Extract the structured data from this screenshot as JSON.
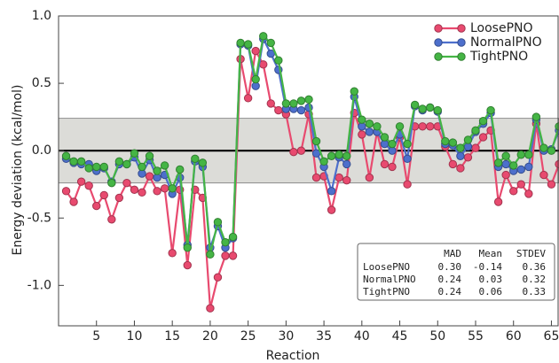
{
  "chart_data": {
    "type": "line",
    "xlabel": "Reaction",
    "ylabel": "Energy deviation (kcal/mol)",
    "x": [
      1,
      2,
      3,
      4,
      5,
      6,
      7,
      8,
      9,
      10,
      11,
      12,
      13,
      14,
      15,
      16,
      17,
      18,
      19,
      20,
      21,
      22,
      23,
      24,
      25,
      26,
      27,
      28,
      29,
      30,
      31,
      32,
      33,
      34,
      35,
      36,
      37,
      38,
      39,
      40,
      41,
      42,
      43,
      44,
      45,
      46,
      47,
      48,
      49,
      50,
      51,
      52,
      53,
      54,
      55,
      56,
      57,
      58,
      59,
      60,
      61,
      62,
      63,
      64,
      65,
      66
    ],
    "series": [
      {
        "name": "LoosePNO",
        "color": "#e84a6f",
        "values": [
          -0.3,
          -0.38,
          -0.23,
          -0.26,
          -0.41,
          -0.33,
          -0.51,
          -0.35,
          -0.24,
          -0.29,
          -0.31,
          -0.19,
          -0.3,
          -0.28,
          -0.76,
          -0.29,
          -0.85,
          -0.29,
          -0.35,
          -1.17,
          -0.94,
          -0.78,
          -0.78,
          0.68,
          0.39,
          0.74,
          0.64,
          0.35,
          0.3,
          0.27,
          -0.01,
          0.0,
          0.27,
          -0.2,
          -0.19,
          -0.44,
          -0.2,
          -0.22,
          0.28,
          0.12,
          -0.2,
          0.14,
          -0.1,
          -0.12,
          0.1,
          -0.25,
          0.18,
          0.18,
          0.18,
          0.18,
          0.03,
          -0.1,
          -0.13,
          -0.05,
          0.02,
          0.1,
          0.15,
          -0.38,
          -0.18,
          -0.3,
          -0.25,
          -0.32,
          0.2,
          -0.18,
          -0.25,
          -0.1
        ]
      },
      {
        "name": "NormalPNO",
        "color": "#4d6fcc",
        "values": [
          -0.06,
          -0.09,
          -0.1,
          -0.1,
          -0.15,
          -0.13,
          -0.23,
          -0.1,
          -0.1,
          -0.05,
          -0.17,
          -0.07,
          -0.2,
          -0.18,
          -0.32,
          -0.2,
          -0.7,
          -0.08,
          -0.12,
          -0.72,
          -0.56,
          -0.72,
          -0.65,
          0.79,
          0.78,
          0.48,
          0.83,
          0.72,
          0.6,
          0.31,
          0.31,
          0.3,
          0.32,
          -0.02,
          -0.12,
          -0.3,
          -0.05,
          -0.1,
          0.4,
          0.18,
          0.14,
          0.14,
          0.05,
          0.0,
          0.12,
          -0.06,
          0.33,
          0.3,
          0.32,
          0.29,
          0.05,
          0.04,
          -0.04,
          0.03,
          0.14,
          0.2,
          0.28,
          -0.12,
          -0.1,
          -0.15,
          -0.14,
          -0.12,
          0.23,
          0.0,
          0.01,
          0.15
        ]
      },
      {
        "name": "TightPNO",
        "color": "#45b545",
        "values": [
          -0.04,
          -0.08,
          -0.08,
          -0.13,
          -0.12,
          -0.12,
          -0.24,
          -0.08,
          -0.1,
          -0.02,
          -0.12,
          -0.04,
          -0.15,
          -0.11,
          -0.28,
          -0.14,
          -0.72,
          -0.06,
          -0.09,
          -0.77,
          -0.53,
          -0.68,
          -0.64,
          0.8,
          0.79,
          0.53,
          0.85,
          0.8,
          0.67,
          0.35,
          0.35,
          0.37,
          0.38,
          0.07,
          -0.08,
          -0.04,
          -0.03,
          -0.04,
          0.44,
          0.23,
          0.2,
          0.18,
          0.1,
          0.05,
          0.18,
          0.05,
          0.34,
          0.31,
          0.32,
          0.3,
          0.07,
          0.06,
          0.02,
          0.08,
          0.15,
          0.22,
          0.3,
          -0.09,
          -0.04,
          -0.11,
          -0.03,
          -0.03,
          0.25,
          0.02,
          0.0,
          0.18
        ]
      }
    ],
    "xlim": [
      0,
      66
    ],
    "xticks": [
      5,
      10,
      15,
      20,
      25,
      30,
      35,
      40,
      45,
      50,
      55,
      60,
      65
    ],
    "ylim": [
      -1.3,
      1.0
    ],
    "yticks": [
      {
        "value": 1.0,
        "label": "1.0"
      },
      {
        "value": 0.5,
        "label": "0.5"
      },
      {
        "value": 0.0,
        "label": "0.0"
      },
      {
        "value": -0.5,
        "label": "-0.5"
      },
      {
        "value": -1.0,
        "label": "-1.0"
      }
    ],
    "band": [
      -0.24,
      0.24
    ],
    "legend": "upper right",
    "stats_table": {
      "columns": [
        "MAD",
        "Mean",
        "STDEV"
      ],
      "rows": [
        {
          "name": "LoosePNO",
          "values": [
            "0.30",
            "-0.14",
            "0.36"
          ]
        },
        {
          "name": "NormalPNO",
          "values": [
            "0.24",
            "0.03",
            "0.32"
          ]
        },
        {
          "name": "TightPNO",
          "values": [
            "0.24",
            "0.06",
            "0.33"
          ]
        }
      ]
    }
  }
}
